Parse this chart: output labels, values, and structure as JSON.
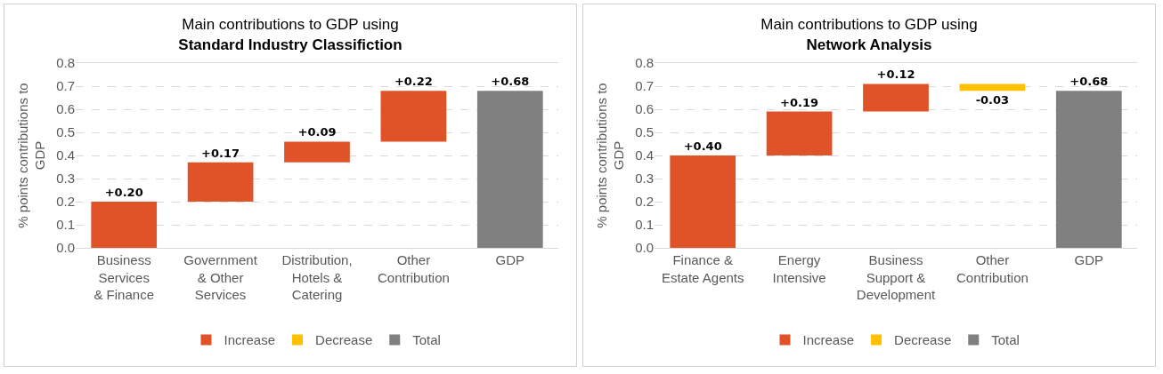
{
  "chart_data": [
    {
      "type": "bar",
      "title": "Main contributions to GDP using",
      "subtitle": "Standard Industry Classifiction",
      "ylabel": "% points contributions to GDP",
      "categories": [
        "Business Services & Finance",
        "Government & Other Services",
        "Distribution, Hotels & Catering",
        "Other Contribution",
        "GDP"
      ],
      "series": [
        {
          "name": "Increase",
          "color": "#e05328",
          "values": [
            0.2,
            0.17,
            0.09,
            0.22,
            null
          ],
          "base": [
            0,
            0.2,
            0.37,
            0.46,
            null
          ],
          "value_labels": [
            "+0.20",
            "+0.17",
            "+0.09",
            "+0.22",
            null
          ]
        },
        {
          "name": "Decrease",
          "color": "#ffc000",
          "values": [
            null,
            null,
            null,
            null,
            null
          ],
          "base": [
            null,
            null,
            null,
            null,
            null
          ],
          "value_labels": [
            null,
            null,
            null,
            null,
            null
          ]
        },
        {
          "name": "Total",
          "color": "#808080",
          "values": [
            null,
            null,
            null,
            null,
            0.68
          ],
          "base": [
            null,
            null,
            null,
            null,
            0
          ],
          "value_labels": [
            null,
            null,
            null,
            null,
            "+0.68"
          ]
        }
      ],
      "ylim": [
        0,
        0.8
      ],
      "yticks": [
        {
          "value": 0,
          "label": "0.0"
        },
        0.1,
        0.2,
        0.3,
        0.4,
        0.5,
        0.6,
        0.7,
        0.8
      ],
      "grid": "y",
      "legend": "bottom"
    },
    {
      "type": "bar",
      "title": "Main contributions to GDP using",
      "subtitle": "Network Analysis",
      "ylabel": "% points contributions to GDP",
      "categories": [
        "Finance & Estate Agents",
        "Energy Intensive",
        "Business Support & Development",
        "Other Contribution",
        "GDP"
      ],
      "series": [
        {
          "name": "Increase",
          "color": "#e05328",
          "values": [
            0.4,
            0.19,
            0.12,
            null,
            null
          ],
          "base": [
            0,
            0.4,
            0.59,
            null,
            null
          ],
          "value_labels": [
            "+0.40",
            "+0.19",
            "+0.12",
            null,
            null
          ]
        },
        {
          "name": "Decrease",
          "color": "#ffc000",
          "values": [
            null,
            null,
            null,
            -0.03,
            null
          ],
          "base": [
            null,
            null,
            null,
            0.71,
            null
          ],
          "value_labels": [
            null,
            null,
            null,
            "-0.03",
            null
          ]
        },
        {
          "name": "Total",
          "color": "#808080",
          "values": [
            null,
            null,
            null,
            null,
            0.68
          ],
          "base": [
            null,
            null,
            null,
            null,
            0
          ],
          "value_labels": [
            null,
            null,
            null,
            null,
            "+0.68"
          ]
        }
      ],
      "ylim": [
        0,
        0.8
      ],
      "yticks": [
        {
          "value": 0,
          "label": "0.0"
        },
        0.1,
        0.2,
        0.3,
        0.4,
        0.5,
        0.6,
        0.7,
        0.8
      ],
      "grid": "y",
      "legend": "bottom"
    }
  ]
}
